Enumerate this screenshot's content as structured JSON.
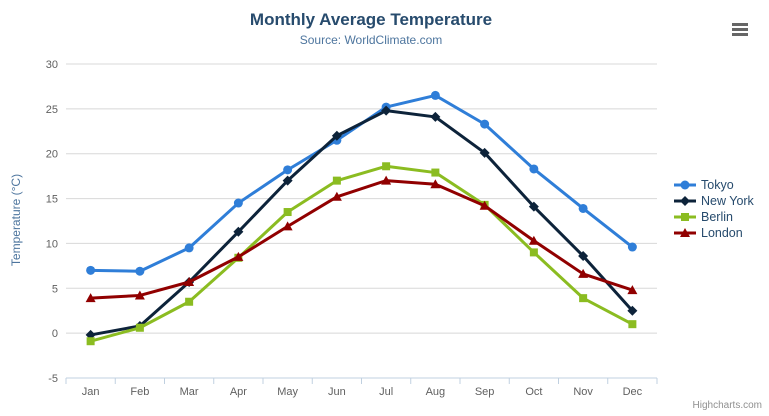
{
  "chart_data": {
    "type": "line",
    "title": "Monthly Average Temperature",
    "subtitle": "Source: WorldClimate.com",
    "xlabel": "",
    "ylabel": "Temperature (°C)",
    "categories": [
      "Jan",
      "Feb",
      "Mar",
      "Apr",
      "May",
      "Jun",
      "Jul",
      "Aug",
      "Sep",
      "Oct",
      "Nov",
      "Dec"
    ],
    "series": [
      {
        "name": "Tokyo",
        "color": "#2f7ed8",
        "marker": "circle",
        "values": [
          7.0,
          6.9,
          9.5,
          14.5,
          18.2,
          21.5,
          25.2,
          26.5,
          23.3,
          18.3,
          13.9,
          9.6
        ]
      },
      {
        "name": "New York",
        "color": "#0d233a",
        "marker": "diamond",
        "values": [
          -0.2,
          0.8,
          5.7,
          11.3,
          17.0,
          22.0,
          24.8,
          24.1,
          20.1,
          14.1,
          8.6,
          2.5
        ]
      },
      {
        "name": "Berlin",
        "color": "#8bbc21",
        "marker": "square",
        "values": [
          -0.9,
          0.6,
          3.5,
          8.4,
          13.5,
          17.0,
          18.6,
          17.9,
          14.3,
          9.0,
          3.9,
          1.0
        ]
      },
      {
        "name": "London",
        "color": "#910000",
        "marker": "triangle",
        "values": [
          3.9,
          4.2,
          5.7,
          8.5,
          11.9,
          15.2,
          17.0,
          16.6,
          14.2,
          10.3,
          6.6,
          4.8
        ]
      }
    ],
    "ylim": [
      -5,
      30
    ],
    "ytick_interval": 5,
    "grid": true,
    "legend_position": "right",
    "credits": "Highcharts.com",
    "colors": {
      "title": "#274b6d",
      "subtitle": "#4d759e",
      "axis_title": "#4d759e",
      "tick_labels": "#606060",
      "gridline": "#d8d8d8",
      "axis_line": "#c0d0e0",
      "legend_text": "#274b6d",
      "credits_text": "#909090",
      "menu_icon": "#666666"
    }
  }
}
